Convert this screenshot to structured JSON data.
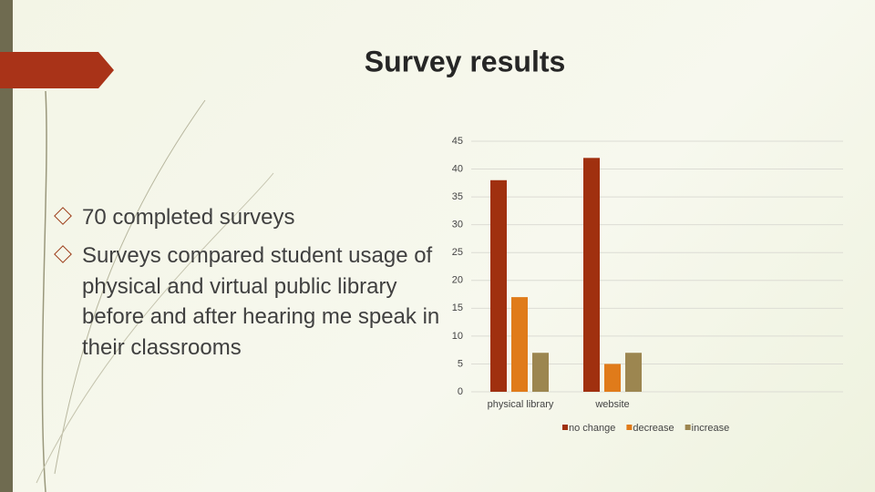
{
  "title": "Survey results",
  "bullets": [
    "70 completed surveys",
    "Surveys compared student usage of physical and virtual public library before and after hearing me speak in their classrooms"
  ],
  "chart_data": {
    "type": "bar",
    "categories": [
      "physical library",
      "website"
    ],
    "series": [
      {
        "name": "no change",
        "color": "#a0300f",
        "values": [
          38,
          42
        ]
      },
      {
        "name": "decrease",
        "color": "#e07b1a",
        "values": [
          17,
          5
        ]
      },
      {
        "name": "increase",
        "color": "#9c8650",
        "values": [
          7,
          7
        ]
      }
    ],
    "ylim": [
      0,
      45
    ],
    "yticks": [
      0,
      5,
      10,
      15,
      20,
      25,
      30,
      35,
      40,
      45
    ],
    "grid": true,
    "legend": "bottom"
  }
}
